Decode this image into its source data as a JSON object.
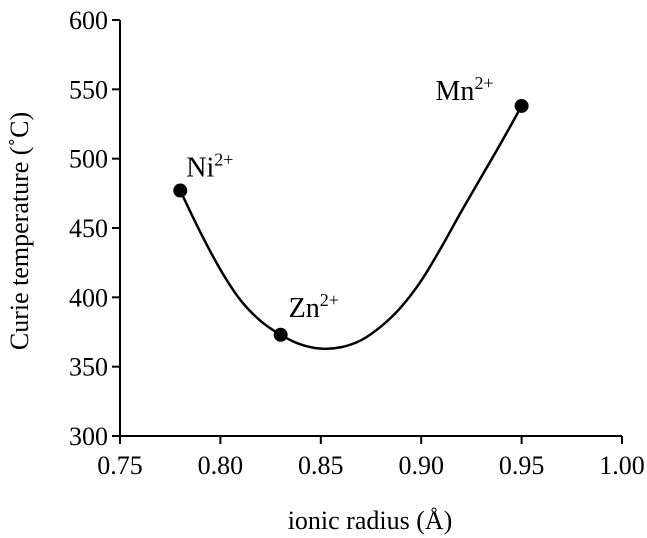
{
  "chart_data": {
    "type": "line",
    "title": "",
    "xlabel": "ionic radius (Å)",
    "ylabel": "Curie temperature (˚C)",
    "xlim": [
      0.75,
      1.0
    ],
    "ylim": [
      300,
      600
    ],
    "xticks": [
      "0.75",
      "0.80",
      "0.85",
      "0.90",
      "0.95",
      "1.00"
    ],
    "yticks": [
      "300",
      "350",
      "400",
      "450",
      "500",
      "550",
      "600"
    ],
    "grid": false,
    "legend": "none",
    "points": [
      {
        "ion": "Ni",
        "charge": "2+",
        "x": 0.78,
        "y": 477
      },
      {
        "ion": "Zn",
        "charge": "2+",
        "x": 0.83,
        "y": 373
      },
      {
        "ion": "Mn",
        "charge": "2+",
        "x": 0.95,
        "y": 538
      }
    ],
    "curve": {
      "x": [
        0.78,
        0.79,
        0.8,
        0.81,
        0.82,
        0.83,
        0.84,
        0.85,
        0.86,
        0.87,
        0.88,
        0.89,
        0.9,
        0.91,
        0.92,
        0.93,
        0.94,
        0.95
      ],
      "y": [
        477,
        447,
        420,
        398,
        383,
        373,
        366,
        363,
        364,
        369,
        379,
        393,
        412,
        436,
        462,
        487,
        512,
        538
      ]
    },
    "colors": {
      "line": "#000000",
      "marker": "#000000",
      "axis": "#000000"
    }
  }
}
